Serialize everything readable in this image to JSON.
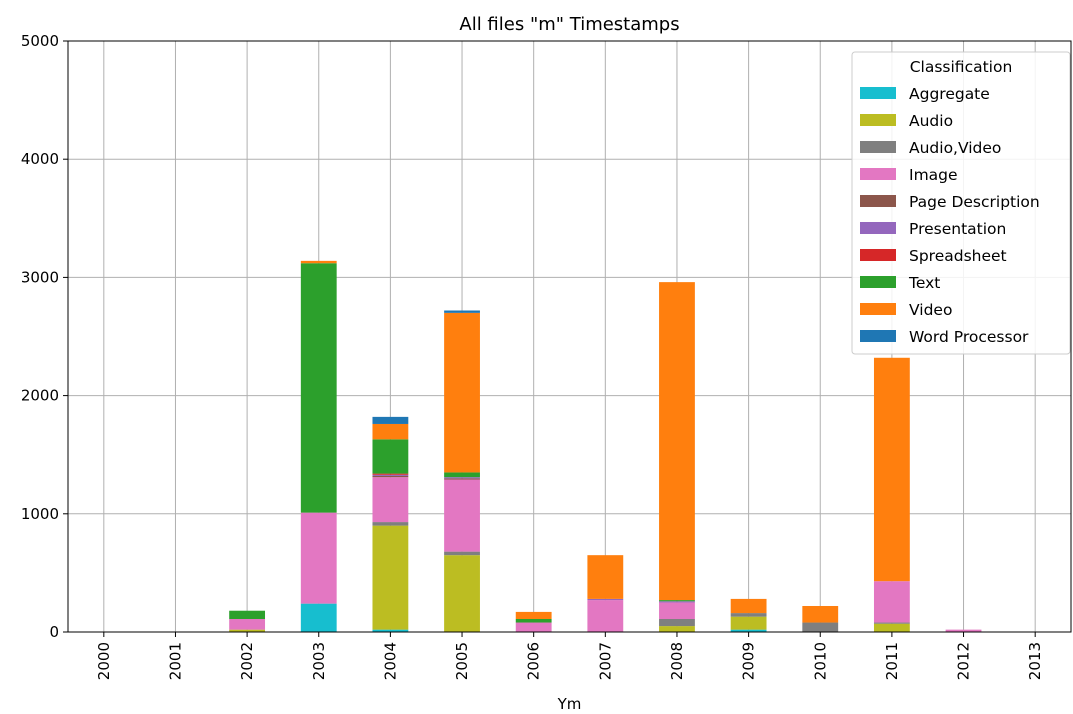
{
  "chart_data": {
    "type": "bar",
    "stacked": true,
    "title": "All files \"m\" Timestamps",
    "xlabel": "Ym",
    "ylabel": "",
    "ylim": [
      0,
      5000
    ],
    "yticks": [
      0,
      1000,
      2000,
      3000,
      4000,
      5000
    ],
    "grid": true,
    "legend": {
      "title": "Classification",
      "placement": "top-right"
    },
    "categories": [
      "2000",
      "2001",
      "2002",
      "2003",
      "2004",
      "2005",
      "2006",
      "2007",
      "2008",
      "2009",
      "2010",
      "2011",
      "2012",
      "2013"
    ],
    "series": [
      {
        "name": "Aggregate",
        "color": "#17becf",
        "values": [
          0,
          0,
          0,
          240,
          20,
          0,
          0,
          0,
          0,
          20,
          0,
          0,
          0,
          0
        ]
      },
      {
        "name": "Audio",
        "color": "#bcbd22",
        "values": [
          0,
          0,
          20,
          0,
          880,
          650,
          0,
          0,
          50,
          110,
          0,
          70,
          0,
          0
        ]
      },
      {
        "name": "Audio,Video",
        "color": "#7f7f7f",
        "values": [
          0,
          0,
          0,
          0,
          30,
          30,
          0,
          0,
          60,
          30,
          80,
          10,
          0,
          0
        ]
      },
      {
        "name": "Image",
        "color": "#e377c2",
        "values": [
          0,
          0,
          90,
          770,
          380,
          610,
          80,
          270,
          140,
          0,
          0,
          350,
          20,
          0
        ]
      },
      {
        "name": "Page Description",
        "color": "#8c564b",
        "values": [
          0,
          0,
          0,
          0,
          10,
          10,
          0,
          0,
          0,
          0,
          0,
          0,
          0,
          0
        ]
      },
      {
        "name": "Presentation",
        "color": "#9467bd",
        "values": [
          0,
          0,
          0,
          0,
          10,
          10,
          0,
          10,
          10,
          0,
          0,
          0,
          0,
          0
        ]
      },
      {
        "name": "Spreadsheet",
        "color": "#d62728",
        "values": [
          0,
          0,
          0,
          0,
          10,
          0,
          0,
          0,
          0,
          0,
          0,
          0,
          0,
          0
        ]
      },
      {
        "name": "Text",
        "color": "#2ca02c",
        "values": [
          0,
          0,
          70,
          2110,
          290,
          40,
          30,
          0,
          10,
          0,
          0,
          0,
          0,
          0
        ]
      },
      {
        "name": "Video",
        "color": "#ff7f0e",
        "values": [
          0,
          0,
          0,
          20,
          130,
          1350,
          60,
          370,
          2690,
          120,
          140,
          1890,
          0,
          0
        ]
      },
      {
        "name": "Word Processor",
        "color": "#1f77b4",
        "values": [
          0,
          0,
          0,
          0,
          60,
          20,
          0,
          0,
          0,
          0,
          0,
          0,
          0,
          0
        ]
      }
    ]
  }
}
